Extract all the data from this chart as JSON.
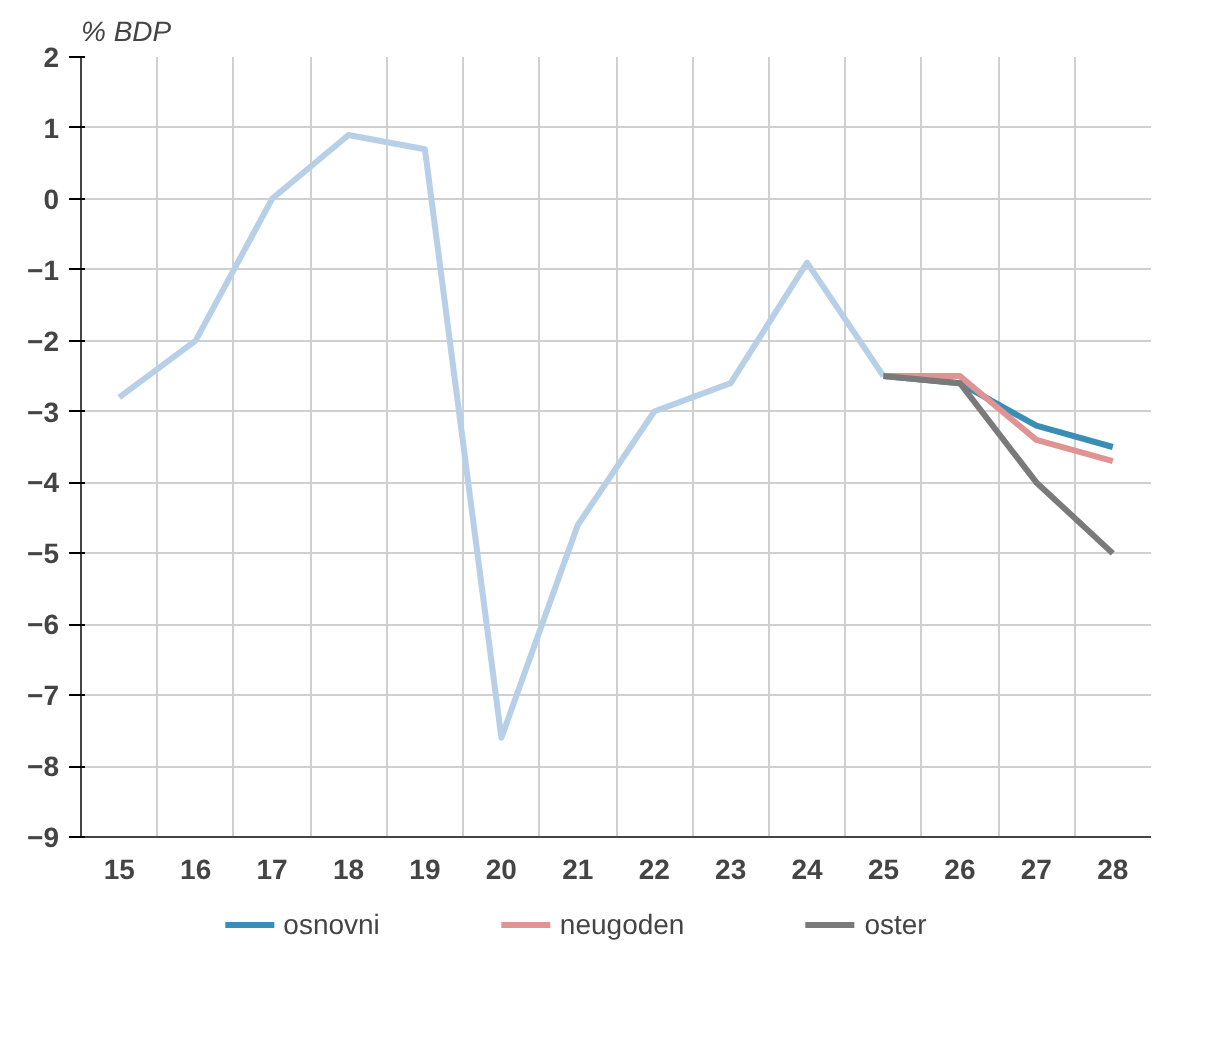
{
  "chart_data": {
    "type": "line",
    "ylabel": "% BDP",
    "categories": [
      "15",
      "16",
      "17",
      "18",
      "19",
      "20",
      "21",
      "22",
      "23",
      "24",
      "25",
      "26",
      "27",
      "28"
    ],
    "series": [
      {
        "color": "#b8cfe8",
        "values": [
          -2.8,
          -2.0,
          0.0,
          0.9,
          0.7,
          -7.6,
          -4.6,
          -3.0,
          -2.6,
          -0.9,
          -2.5,
          null,
          null,
          null
        ]
      },
      {
        "name": "osnovni",
        "color": "#3a8db5",
        "values": [
          null,
          null,
          null,
          null,
          null,
          null,
          null,
          null,
          null,
          null,
          -2.5,
          -2.6,
          -3.2,
          -3.5
        ]
      },
      {
        "name": "neugoden",
        "color": "#e09393",
        "values": [
          null,
          null,
          null,
          null,
          null,
          null,
          null,
          null,
          null,
          null,
          -2.5,
          -2.5,
          -3.4,
          -3.7
        ]
      },
      {
        "name": "oster",
        "color": "#7a7a7a",
        "values": [
          null,
          null,
          null,
          null,
          null,
          null,
          null,
          null,
          null,
          null,
          -2.5,
          -2.6,
          -4.0,
          -5.0
        ]
      }
    ],
    "ylim": [
      -9,
      2
    ],
    "yticks": [
      -9,
      -8,
      -7,
      -6,
      -5,
      -4,
      -3,
      -2,
      -1,
      0,
      1,
      2
    ],
    "grid": true,
    "legend": "bottom",
    "marker": "none",
    "line_style": "solid"
  }
}
